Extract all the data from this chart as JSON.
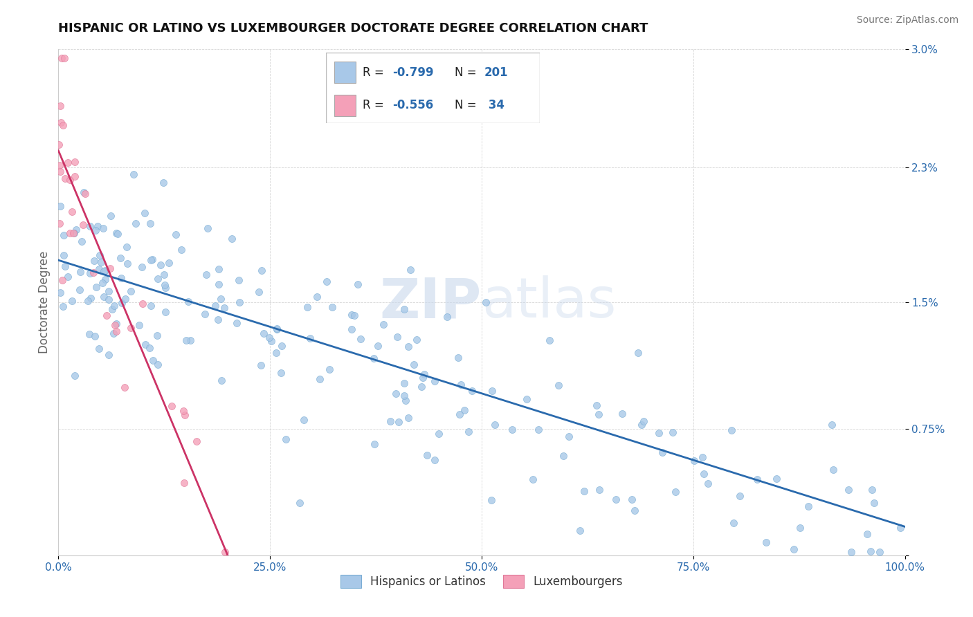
{
  "title": "HISPANIC OR LATINO VS LUXEMBOURGER DOCTORATE DEGREE CORRELATION CHART",
  "source": "Source: ZipAtlas.com",
  "ylabel": "Doctorate Degree",
  "r_blue": -0.799,
  "n_blue": 201,
  "r_pink": -0.556,
  "n_pink": 34,
  "legend_labels": [
    "Hispanics or Latinos",
    "Luxembourgers"
  ],
  "blue_color": "#a8c8e8",
  "blue_edge_color": "#7aadd4",
  "blue_line_color": "#2a6aad",
  "pink_color": "#f4a0b8",
  "pink_edge_color": "#e07898",
  "pink_line_color": "#cc3366",
  "title_color": "#111111",
  "axis_label_color": "#2a6aad",
  "tick_color": "#2a6aad",
  "source_color": "#777777",
  "watermark_color": "#c8d8ec",
  "xmin": 0,
  "xmax": 100,
  "ymin": 0,
  "ymax": 0.03,
  "yticks": [
    0.0,
    0.0075,
    0.015,
    0.023,
    0.03
  ],
  "ytick_labels": [
    "",
    "0.75%",
    "1.5%",
    "2.3%",
    "3.0%"
  ],
  "xticks": [
    0,
    25,
    50,
    75,
    100
  ],
  "xtick_labels": [
    "0.0%",
    "25.0%",
    "50.0%",
    "75.0%",
    "100.0%"
  ],
  "blue_slope": -0.000158,
  "blue_intercept": 0.0175,
  "pink_slope": -0.0012,
  "pink_intercept": 0.024
}
